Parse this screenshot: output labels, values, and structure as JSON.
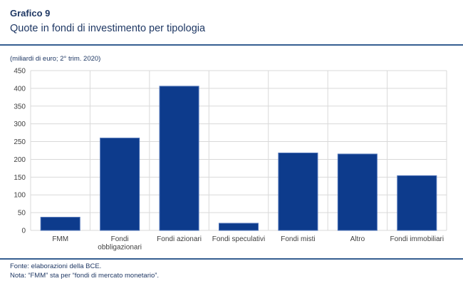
{
  "header": {
    "kicker": "Grafico 9",
    "title": "Quote in fondi di investimento per tipologia",
    "units": "(miliardi di euro; 2° trim. 2020)"
  },
  "footer": {
    "source": "Fonte: elaborazioni della BCE.",
    "note": "Nota: “FMM” sta per “fondi di mercato monetario”."
  },
  "colors": {
    "bar": "#0d3b8c",
    "bar_border": "#4a6fb5",
    "accent_text": "#1f3864",
    "rule": "#365f91",
    "axis_text": "#404040",
    "gridline": "#d9d9d9"
  },
  "chart_data": {
    "type": "bar",
    "title": "Quote in fondi di investimento per tipologia",
    "subtitle": "(miliardi di euro; 2° trim. 2020)",
    "categories": [
      "FMM",
      "Fondi obbligazionari",
      "Fondi azionari",
      "Fondi speculativi",
      "Fondi misti",
      "Altro",
      "Fondi immobiliari"
    ],
    "category_lines": [
      [
        "FMM"
      ],
      [
        "Fondi",
        "obbligazionari"
      ],
      [
        "Fondi azionari"
      ],
      [
        "Fondi speculativi"
      ],
      [
        "Fondi misti"
      ],
      [
        "Altro"
      ],
      [
        "Fondi immobiliari"
      ]
    ],
    "values": [
      37,
      260,
      406,
      20,
      218,
      215,
      154
    ],
    "xlabel": "",
    "ylabel": "",
    "ylim": [
      0,
      450
    ],
    "ytick_step": 50,
    "yticks": [
      0,
      50,
      100,
      150,
      200,
      250,
      300,
      350,
      400,
      450
    ],
    "grid": true,
    "legend": false
  }
}
